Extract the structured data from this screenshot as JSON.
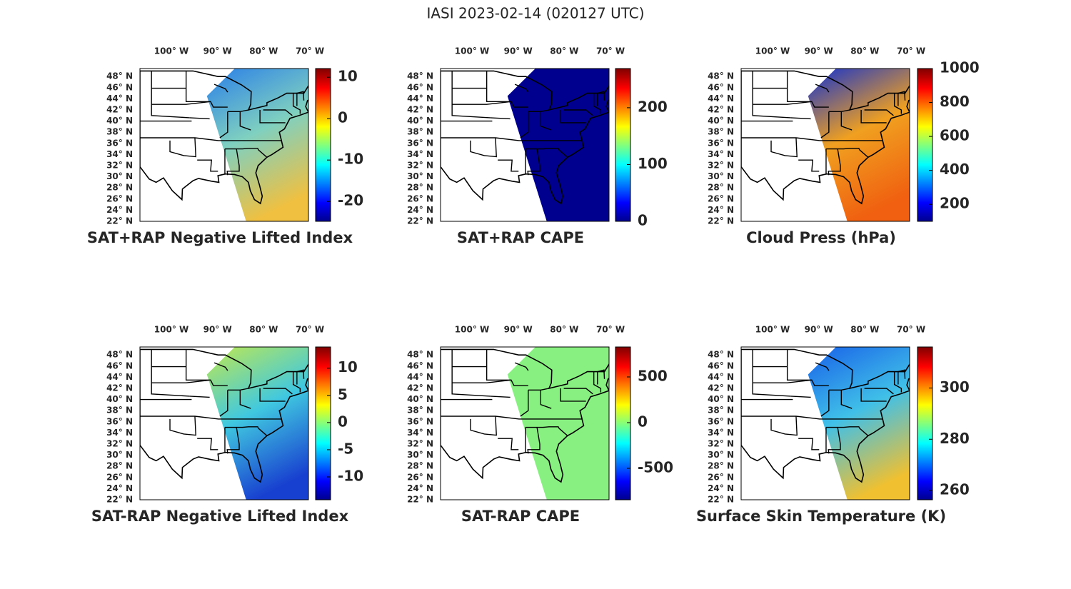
{
  "title": "IASI 2023-02-14 (020127 UTC)",
  "lon_ticks": [
    {
      "value": -100,
      "label": "100° W"
    },
    {
      "value": -90,
      "label": "90° W"
    },
    {
      "value": -80,
      "label": "80° W"
    },
    {
      "value": -70,
      "label": "70° W"
    }
  ],
  "lat_ticks": [
    {
      "value": 48,
      "label": "48° N"
    },
    {
      "value": 46,
      "label": "46° N"
    },
    {
      "value": 44,
      "label": "44° N"
    },
    {
      "value": 42,
      "label": "42° N"
    },
    {
      "value": 40,
      "label": "40° N"
    },
    {
      "value": 38,
      "label": "38° N"
    },
    {
      "value": 36,
      "label": "36° N"
    },
    {
      "value": 34,
      "label": "34° N"
    },
    {
      "value": 32,
      "label": "32° N"
    },
    {
      "value": 30,
      "label": "30° N"
    },
    {
      "value": 28,
      "label": "28° N"
    },
    {
      "value": 26,
      "label": "26° N"
    },
    {
      "value": 24,
      "label": "24° N"
    },
    {
      "value": 22,
      "label": "22° N"
    }
  ],
  "panels": [
    {
      "title": "SAT+RAP Negative Lifted Index",
      "clim": [
        -24.8,
        12.1
      ],
      "cticks": [
        10,
        0,
        -10,
        -20
      ],
      "colors": [
        "#2a7fe8",
        "#7fd0c0",
        "#f0c040"
      ]
    },
    {
      "title": "SAT+RAP CAPE",
      "clim": [
        0,
        269
      ],
      "cticks": [
        200,
        100,
        0
      ],
      "colors": [
        "#00008f",
        "#00008f",
        "#00008f"
      ]
    },
    {
      "title": "Cloud Press (hPa)",
      "clim": [
        100,
        1000
      ],
      "cticks": [
        1000,
        800,
        600,
        400,
        200
      ],
      "colors": [
        "#1030d0",
        "#f0a020",
        "#f06010"
      ]
    },
    {
      "title": "SAT-RAP Negative Lifted Index",
      "clim": [
        -14.2,
        13.9
      ],
      "cticks": [
        10,
        5,
        0,
        -5,
        -10
      ],
      "colors": [
        "#c0e850",
        "#40c8e0",
        "#1840d0"
      ]
    },
    {
      "title": "SAT-RAP CAPE",
      "clim": [
        -844,
        828
      ],
      "cticks": [
        500,
        0,
        -500
      ],
      "colors": [
        "#88f080",
        "#88f080",
        "#88f080"
      ]
    },
    {
      "title": "Surface Skin Temperature (K)",
      "clim": [
        256.4,
        316
      ],
      "cticks": [
        300,
        280,
        260
      ],
      "colors": [
        "#1860e8",
        "#40c0e8",
        "#f0c030"
      ]
    }
  ]
}
